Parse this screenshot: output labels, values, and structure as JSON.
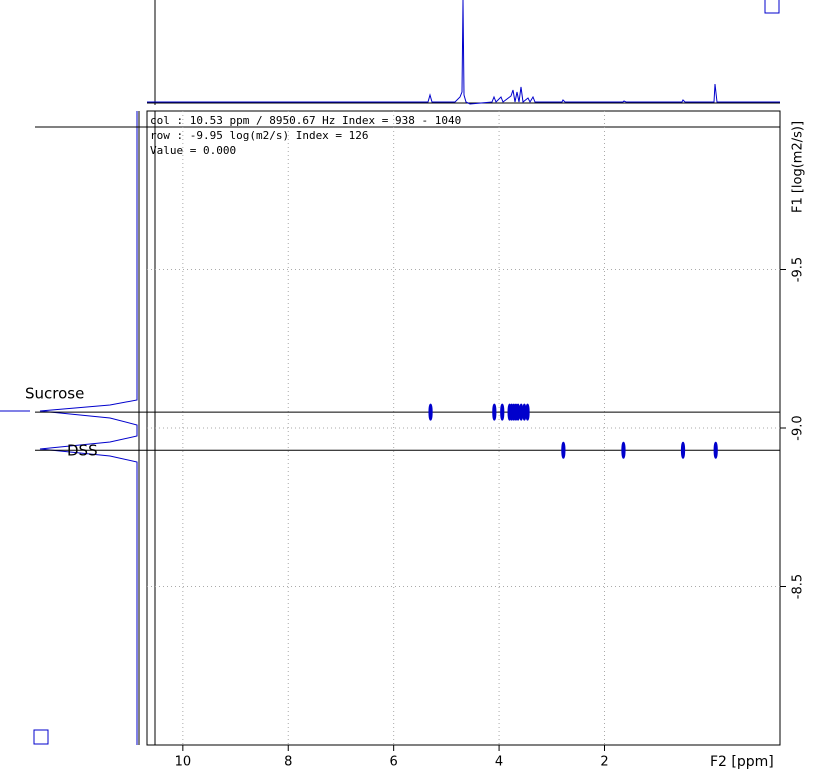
{
  "chart_data": {
    "type": "scatter",
    "cursor_info": [
      "col : 10.53 ppm / 8950.67 Hz Index = 938 - 1040",
      "row : -9.95 log(m2/s) Index = 126",
      "Value = 0.000"
    ],
    "x_label": "F2 [ppm]",
    "y_label": "F1 [log(m2/s)]",
    "xlim": [
      10.68,
      -1.33
    ],
    "ylim": [
      -10.0,
      -8.0
    ],
    "xticks": [
      10,
      8,
      6,
      4,
      2
    ],
    "yticks": [
      -9.5,
      {
        "value": -9,
        "label": "-9.0"
      },
      -8.5
    ],
    "grid": true,
    "series": [
      {
        "name": "Sucrose",
        "color": "#0000cc",
        "x": [
          5.3,
          4.09,
          3.94,
          3.8,
          3.76,
          3.72,
          3.68,
          3.64,
          3.58,
          3.52,
          3.46
        ],
        "y": [
          -9.05,
          -9.05,
          -9.05,
          -9.05,
          -9.05,
          -9.05,
          -9.05,
          -9.05,
          -9.05,
          -9.05,
          -9.05
        ]
      },
      {
        "name": "DSS",
        "color": "#0000cc",
        "x": [
          2.78,
          1.64,
          0.51,
          -0.11
        ],
        "y": [
          -8.93,
          -8.93,
          -8.93,
          -8.93
        ]
      }
    ]
  }
}
